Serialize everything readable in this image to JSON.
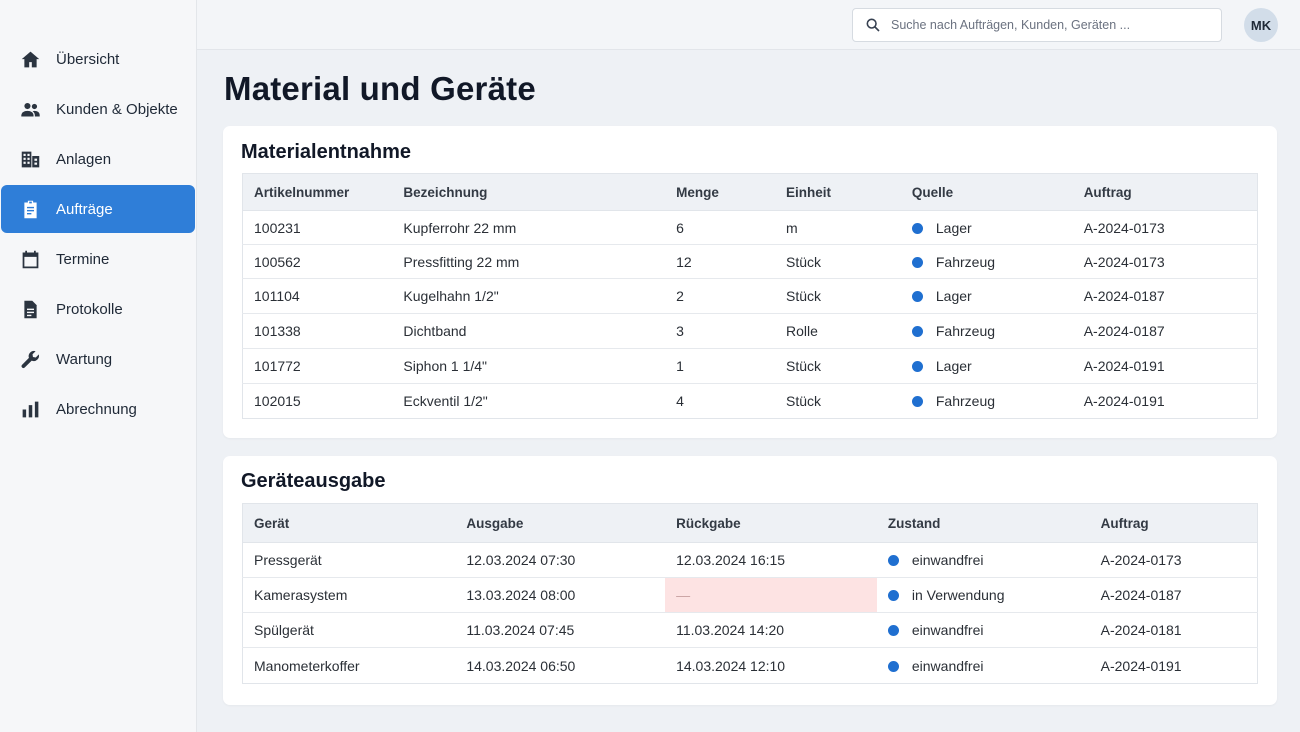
{
  "sidebar": {
    "items": [
      {
        "label": "Übersicht",
        "icon": "home-icon",
        "active": false
      },
      {
        "label": "Kunden & Objekte",
        "icon": "users-icon",
        "active": false
      },
      {
        "label": "Anlagen",
        "icon": "building-icon",
        "active": false
      },
      {
        "label": "Aufträge",
        "icon": "clipboard-icon",
        "active": true
      },
      {
        "label": "Termine",
        "icon": "calendar-icon",
        "active": false
      },
      {
        "label": "Protokolle",
        "icon": "document-icon",
        "active": false
      },
      {
        "label": "Wartung",
        "icon": "wrench-icon",
        "active": false
      },
      {
        "label": "Abrechnung",
        "icon": "bar-chart-icon",
        "active": false
      }
    ]
  },
  "header": {
    "search_placeholder": "Suche nach Aufträgen, Kunden, Geräten ...",
    "search_value": "",
    "avatar_initials": "MK"
  },
  "page": {
    "title": "Material und Geräte"
  },
  "materials": {
    "title": "Materialentnahme",
    "columns": [
      "Artikelnummer",
      "Bezeichnung",
      "Menge",
      "Einheit",
      "Quelle",
      "Auftrag"
    ],
    "rows": [
      {
        "artikel": "100231",
        "bezeichnung": "Kupferrohr 22 mm",
        "menge": "6",
        "einheit": "m",
        "quelle": "Lager",
        "auftrag": "A-2024-0173"
      },
      {
        "artikel": "100562",
        "bezeichnung": "Pressfitting 22 mm",
        "menge": "12",
        "einheit": "Stück",
        "quelle": "Fahrzeug",
        "auftrag": "A-2024-0173"
      },
      {
        "artikel": "101104",
        "bezeichnung": "Kugelhahn 1/2\"",
        "menge": "2",
        "einheit": "Stück",
        "quelle": "Lager",
        "auftrag": "A-2024-0187"
      },
      {
        "artikel": "101338",
        "bezeichnung": "Dichtband",
        "menge": "3",
        "einheit": "Rolle",
        "quelle": "Fahrzeug",
        "auftrag": "A-2024-0187"
      },
      {
        "artikel": "101772",
        "bezeichnung": "Siphon 1 1/4\"",
        "menge": "1",
        "einheit": "Stück",
        "quelle": "Lager",
        "auftrag": "A-2024-0191"
      },
      {
        "artikel": "102015",
        "bezeichnung": "Eckventil 1/2\"",
        "menge": "4",
        "einheit": "Stück",
        "quelle": "Fahrzeug",
        "auftrag": "A-2024-0191"
      }
    ]
  },
  "devices": {
    "title": "Geräteausgabe",
    "columns": [
      "Gerät",
      "Ausgabe",
      "Rückgabe",
      "Zustand",
      "Auftrag"
    ],
    "rows": [
      {
        "geraet": "Pressgerät",
        "ausgabe": "12.03.2024 07:30",
        "rueckgabe": "12.03.2024 16:15",
        "zustand": "einwandfrei",
        "auftrag": "A-2024-0173"
      },
      {
        "geraet": "Kamerasystem",
        "ausgabe": "13.03.2024 08:00",
        "rueckgabe": "—",
        "zustand": "in Verwendung",
        "auftrag": "A-2024-0187"
      },
      {
        "geraet": "Spülgerät",
        "ausgabe": "11.03.2024 07:45",
        "rueckgabe": "11.03.2024 14:20",
        "zustand": "einwandfrei",
        "auftrag": "A-2024-0181"
      },
      {
        "geraet": "Manometerkoffer",
        "ausgabe": "14.03.2024 06:50",
        "rueckgabe": "14.03.2024 12:10",
        "zustand": "einwandfrei",
        "auftrag": "A-2024-0191"
      }
    ]
  },
  "colors": {
    "accent": "#2f7ed8",
    "status_dot": "#1f6fd0",
    "missing_highlight": "#fde3e3"
  }
}
